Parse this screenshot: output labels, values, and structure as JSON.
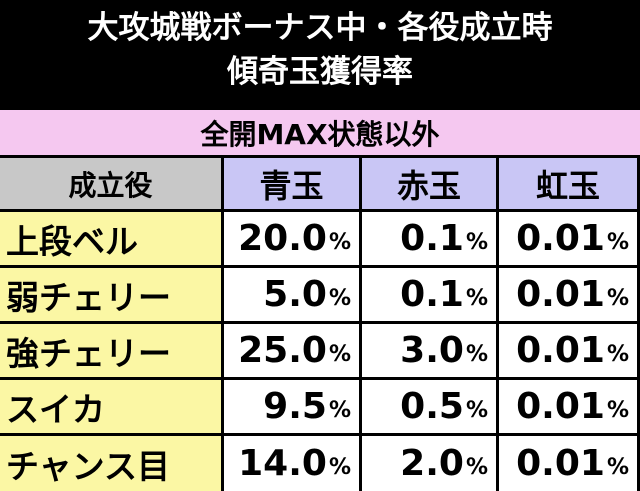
{
  "header": {
    "title_lines": [
      "大攻城戦ボーナス中・各役成立時",
      "傾奇玉獲得率"
    ]
  },
  "table": {
    "caption": "全開MAX状態以外",
    "columns": [
      "成立役",
      "青玉",
      "赤玉",
      "虹玉"
    ],
    "rows": [
      [
        "上段ベル",
        "20.0%",
        "0.1%",
        "0.01%"
      ],
      [
        "弱チェリー",
        "5.0%",
        "0.1%",
        "0.01%"
      ],
      [
        "強チェリー",
        "25.0%",
        "3.0%",
        "0.01%"
      ],
      [
        "スイカ",
        "9.5%",
        "0.5%",
        "0.01%"
      ],
      [
        "チャンス目",
        "14.0%",
        "2.0%",
        "0.01%"
      ]
    ]
  }
}
